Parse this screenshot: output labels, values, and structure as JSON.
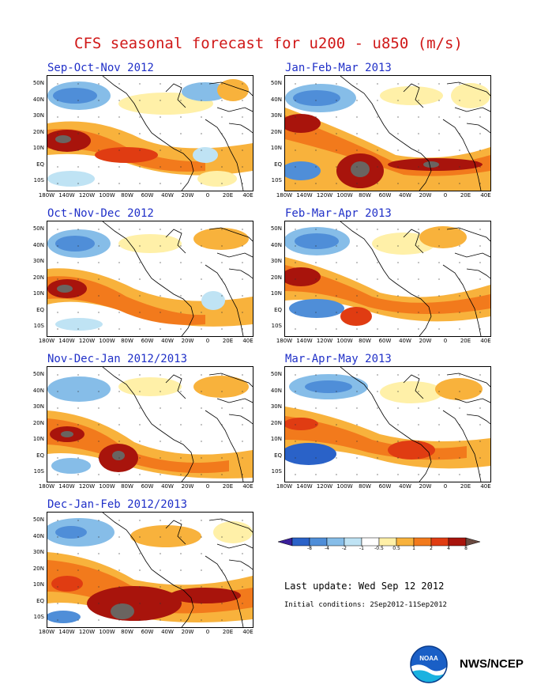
{
  "title": "CFS seasonal forecast for u200 - u850 (m/s)",
  "y_labels": [
    "50N",
    "40N",
    "30N",
    "20N",
    "10N",
    "EQ",
    "10S"
  ],
  "x_labels": [
    "180W",
    "140W",
    "120W",
    "100W",
    "80W",
    "60W",
    "40W",
    "20W",
    "0",
    "20E",
    "40E"
  ],
  "panels": [
    {
      "title": "Sep-Oct-Nov 2012",
      "pattern": "son"
    },
    {
      "title": "Jan-Feb-Mar 2013",
      "pattern": "jfm"
    },
    {
      "title": "Oct-Nov-Dec 2012",
      "pattern": "ond"
    },
    {
      "title": "Feb-Mar-Apr 2013",
      "pattern": "fma"
    },
    {
      "title": "Nov-Dec-Jan 2012/2013",
      "pattern": "ndj"
    },
    {
      "title": "Mar-Apr-May 2013",
      "pattern": "mam"
    },
    {
      "title": "Dec-Jan-Feb 2012/2013",
      "pattern": "djf"
    }
  ],
  "colorbar": {
    "ticks": [
      "-8",
      "-4",
      "-2",
      "-1",
      "-0.5",
      "0.5",
      "1",
      "2",
      "4",
      "8"
    ],
    "colors": [
      "#3a1f9a",
      "#2a62c8",
      "#4f8ed8",
      "#86bde8",
      "#bfe3f4",
      "#ffffff",
      "#fff0a8",
      "#f8b23c",
      "#f27a1c",
      "#e03c12",
      "#a8140c",
      "#6a4a40"
    ]
  },
  "last_update": "Last update: Wed Sep 12 2012",
  "initial_conditions": "Initial conditions: 2Sep2012-11Sep2012",
  "agency": "NWS/NCEP",
  "logo_text": "NOAA"
}
